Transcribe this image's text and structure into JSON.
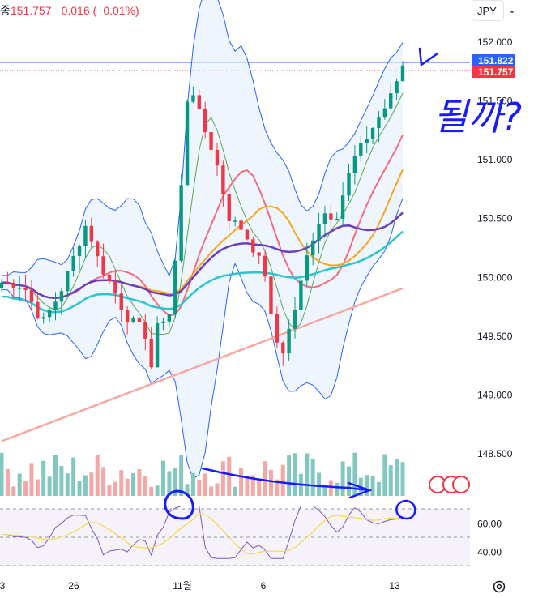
{
  "header": {
    "label_fragment": "종",
    "price": "151.757",
    "change": "−0.016 (−0.01%)"
  },
  "currency_selector": {
    "value": "JPY",
    "caret": "⌄"
  },
  "chart_data": {
    "type": "candlestick",
    "symbol_currency": "JPY",
    "price_axis": {
      "ticks": [
        "152.000",
        "151.500",
        "151.000",
        "150.500",
        "150.000",
        "149.500",
        "149.000",
        "148.500"
      ],
      "range": [
        148.1,
        152.25
      ]
    },
    "price_labels": [
      {
        "value": "151.822",
        "color": "#2962ff"
      },
      {
        "value": "151.757",
        "color": "#f23645"
      }
    ],
    "time_axis": {
      "labels": [
        "3",
        "26",
        "11월",
        "6",
        "13"
      ]
    },
    "series": [
      {
        "type": "candles",
        "approx_count": 68
      },
      {
        "type": "bollinger_bands",
        "color": "#2962ff"
      },
      {
        "type": "moving_average",
        "color": "#5ba84a"
      },
      {
        "type": "moving_average",
        "color": "#f26d7d"
      },
      {
        "type": "moving_average",
        "color": "#f5a623"
      },
      {
        "type": "moving_average",
        "color": "#6a3fbf"
      },
      {
        "type": "moving_average",
        "color": "#2ec4cf"
      },
      {
        "type": "moving_average",
        "color": "#f7a8a0"
      }
    ],
    "volume": {
      "up_color": "#83c8c0",
      "down_color": "#f4a8a6"
    },
    "rsi": {
      "ticks": [
        "60.00",
        "40.00"
      ],
      "levels": [
        70,
        50,
        30
      ],
      "line_color": "#7e57c2",
      "signal_color": "#f5d94a"
    },
    "annotations": [
      {
        "type": "handwriting",
        "text": "될까?"
      }
    ]
  }
}
